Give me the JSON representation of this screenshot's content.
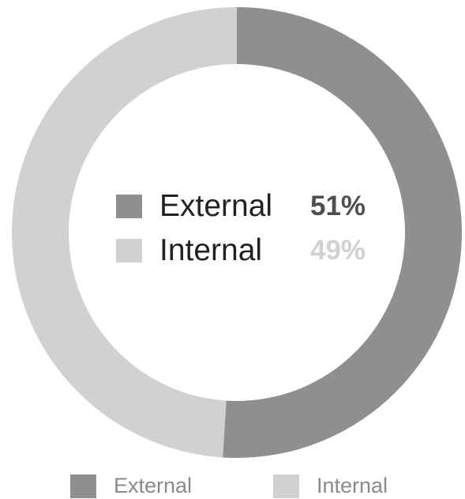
{
  "chart_data": {
    "type": "pie",
    "donut": true,
    "categories": [
      "External",
      "Internal"
    ],
    "values": [
      51,
      49
    ],
    "unit": "%",
    "value_labels": [
      "51%",
      "49%"
    ],
    "colors": [
      "#8f8f8f",
      "#d1d1d1"
    ],
    "legend_position": "bottom",
    "center_legend": true
  }
}
